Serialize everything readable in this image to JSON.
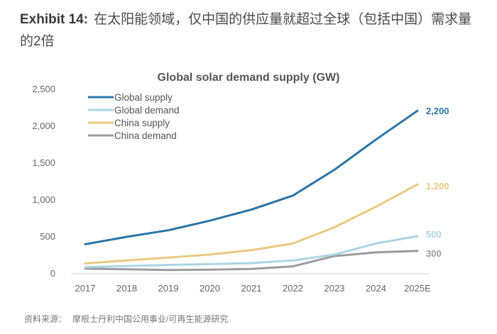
{
  "header": {
    "exhibit_label": "Exhibit 14:",
    "exhibit_text": "在太阳能领域，仅中国的供应量就超过全球（包括中国）需求量的2倍"
  },
  "footer": {
    "source_label": "资料来源：",
    "source_text": "摩根士丹利中国公用事业/可再生能源研究"
  },
  "chart_data": {
    "type": "line",
    "title": "Global solar demand supply (GW)",
    "xlabel": "",
    "ylabel": "",
    "x": [
      "2017",
      "2018",
      "2019",
      "2020",
      "2021",
      "2022",
      "2023",
      "2024",
      "2025E"
    ],
    "ylim": [
      0,
      2500
    ],
    "yticks": [
      0,
      500,
      1000,
      1500,
      2000,
      2500
    ],
    "ytick_labels": [
      "0",
      "500",
      "1,000",
      "1,500",
      "2,000",
      "2,500"
    ],
    "grid": false,
    "legend_position": "top-left",
    "series": [
      {
        "name": "Global supply",
        "color": "#2a74a8",
        "values": [
          390,
          490,
          580,
          710,
          860,
          1050,
          1400,
          1810,
          2200
        ],
        "end_label": "2,200"
      },
      {
        "name": "Global demand",
        "color": "#a9d6e2",
        "values": [
          80,
          95,
          110,
          120,
          135,
          170,
          250,
          400,
          500
        ],
        "end_label": "500"
      },
      {
        "name": "China supply",
        "color": "#e8c97e",
        "values": [
          130,
          170,
          210,
          250,
          310,
          400,
          620,
          900,
          1200
        ],
        "end_label": "1,200"
      },
      {
        "name": "China demand",
        "color": "#9b9b9b",
        "values": [
          60,
          50,
          40,
          45,
          55,
          90,
          230,
          280,
          300
        ],
        "end_label": "300"
      }
    ]
  }
}
